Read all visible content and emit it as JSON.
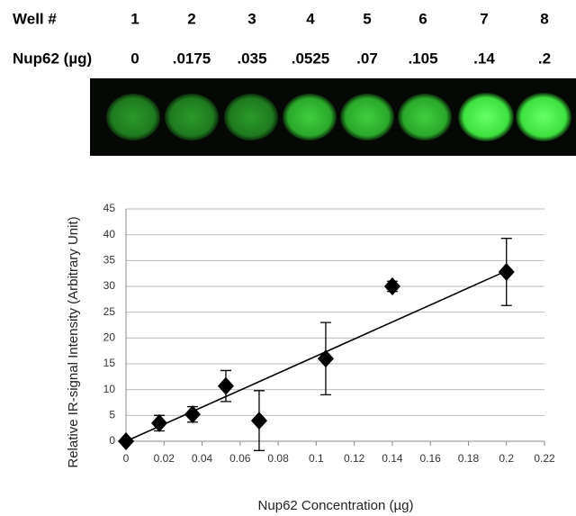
{
  "wells": {
    "row_labels": [
      "Well #",
      "Nup62 (µg)"
    ],
    "numbers": [
      1,
      2,
      3,
      4,
      5,
      6,
      7,
      8
    ],
    "amounts": [
      "0",
      ".0175",
      ".035",
      ".0525",
      ".07",
      ".105",
      ".14",
      ".2"
    ]
  },
  "chart_data": {
    "type": "scatter",
    "x_label": "Nup62 Concentration (µg)",
    "y_label": "Relative IR-signal Intensity (Arbitrary Unit)",
    "x": [
      0,
      0.0175,
      0.035,
      0.0525,
      0.07,
      0.105,
      0.14,
      0.2
    ],
    "values": [
      0,
      3.5,
      5.2,
      10.7,
      4,
      16,
      30,
      32.8
    ],
    "errors": [
      0,
      1.5,
      1.5,
      3,
      5.8,
      7,
      1,
      6.5
    ],
    "color": "#000000",
    "trendline": {
      "x": [
        0,
        0.2
      ],
      "y": [
        0,
        33
      ]
    },
    "xlim": [
      0,
      0.22
    ],
    "xticks": [
      0,
      0.02,
      0.04,
      0.06,
      0.08,
      0.1,
      0.12,
      0.14,
      0.16,
      0.18,
      0.2,
      0.22
    ],
    "ylim": [
      0,
      45
    ],
    "yticks": [
      0,
      5,
      10,
      15,
      20,
      25,
      30,
      35,
      40,
      45
    ],
    "grid": true
  }
}
